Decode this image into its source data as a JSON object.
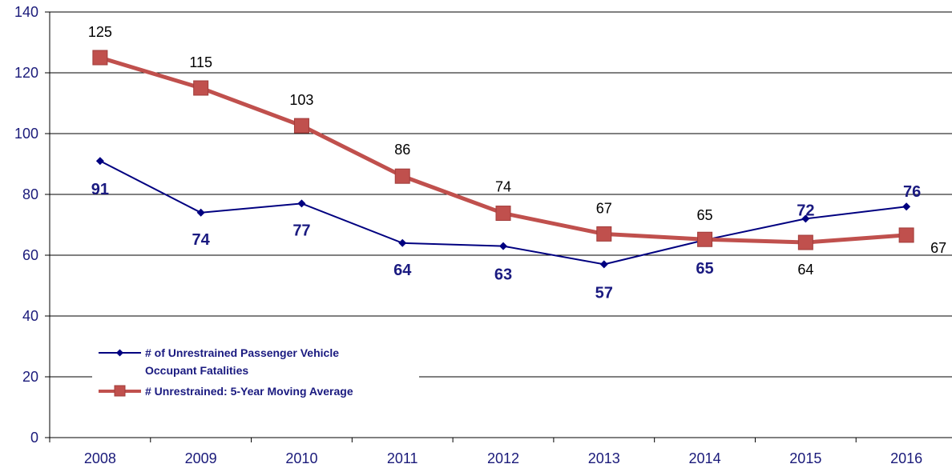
{
  "chart_data": {
    "type": "line",
    "title": "",
    "xlabel": "",
    "ylabel": "",
    "ylim": [
      0,
      140
    ],
    "yticks": [
      0,
      20,
      40,
      60,
      80,
      100,
      120,
      140
    ],
    "grid": "horizontal",
    "legend_position": "lower-left",
    "categories": [
      "2008",
      "2009",
      "2010",
      "2011",
      "2012",
      "2013",
      "2014",
      "2015",
      "2016"
    ],
    "series": [
      {
        "name": "# of Unrestrained Passenger Vehicle Occupant Fatalities",
        "legend_lines": [
          "# of Unrestrained Passenger Vehicle",
          "Occupant Fatalities"
        ],
        "values": [
          91,
          74,
          77,
          64,
          63,
          57,
          65,
          72,
          76
        ],
        "labels": [
          "91",
          "74",
          "77",
          "64",
          "63",
          "57",
          "65",
          "72",
          "76"
        ],
        "color": "#000080",
        "marker": "diamond"
      },
      {
        "name": "# Unrestrained: 5-Year Moving Average",
        "legend_lines": [
          "# Unrestrained: 5-Year Moving Average"
        ],
        "values": [
          125,
          115,
          102.6,
          86,
          73.8,
          67,
          65.2,
          64.2,
          66.6
        ],
        "labels": [
          "125",
          "115",
          "103",
          "86",
          "74",
          "67",
          "65",
          "64",
          "67"
        ],
        "color": "#c0504d",
        "marker": "square"
      }
    ]
  }
}
